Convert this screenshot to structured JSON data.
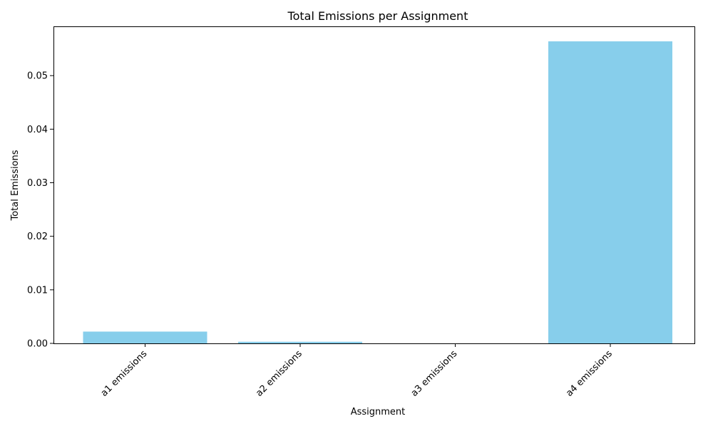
{
  "chart_data": {
    "type": "bar",
    "title": "Total Emissions per Assignment",
    "xlabel": "Assignment",
    "ylabel": "Total Emissions",
    "categories": [
      "a1 emissions",
      "a2 emissions",
      "a3 emissions",
      "a4 emissions"
    ],
    "values": [
      0.0022,
      0.0003,
      0.0,
      0.0564
    ],
    "ylim": [
      0,
      0.0592
    ],
    "yticks": [
      0.0,
      0.01,
      0.02,
      0.03,
      0.04,
      0.05
    ],
    "ytick_labels": [
      "0.00",
      "0.01",
      "0.02",
      "0.03",
      "0.04",
      "0.05"
    ],
    "bar_color": "#87ceeb",
    "grid": false,
    "legend": "none"
  }
}
